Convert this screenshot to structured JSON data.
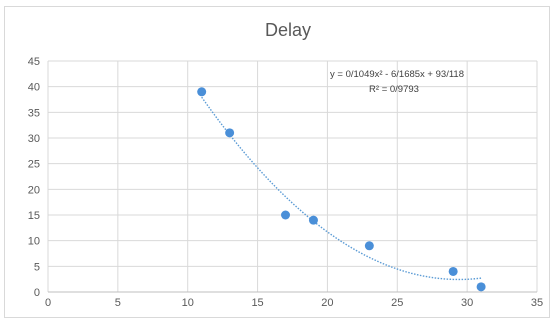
{
  "chart_data": {
    "type": "scatter",
    "title": "Delay",
    "xlabel": "",
    "ylabel": "",
    "xlim": [
      0,
      35
    ],
    "ylim": [
      0,
      45
    ],
    "x_ticks": [
      0,
      5,
      10,
      15,
      20,
      25,
      30,
      35
    ],
    "y_ticks": [
      0,
      5,
      10,
      15,
      20,
      25,
      30,
      35,
      40,
      45
    ],
    "grid": true,
    "legend": "none",
    "series": [
      {
        "points": [
          {
            "x": 11,
            "y": 39
          },
          {
            "x": 13,
            "y": 31
          },
          {
            "x": 17,
            "y": 15
          },
          {
            "x": 19,
            "y": 14
          },
          {
            "x": 23,
            "y": 9
          },
          {
            "x": 29,
            "y": 4
          },
          {
            "x": 31,
            "y": 1
          }
        ],
        "color": "#4a8fd8"
      }
    ],
    "trendline": {
      "type": "polynomial",
      "order": 2,
      "coefficients": {
        "a": 0.1049,
        "b": -6.1685,
        "c": 93.118
      },
      "x_range": [
        11,
        31
      ],
      "style": "dotted",
      "color": "#5b9bd5"
    },
    "annotations": {
      "equation": "y = 0/1049x² - 6/1685x + 93/118",
      "r_squared": "R² = 0/9793"
    }
  }
}
